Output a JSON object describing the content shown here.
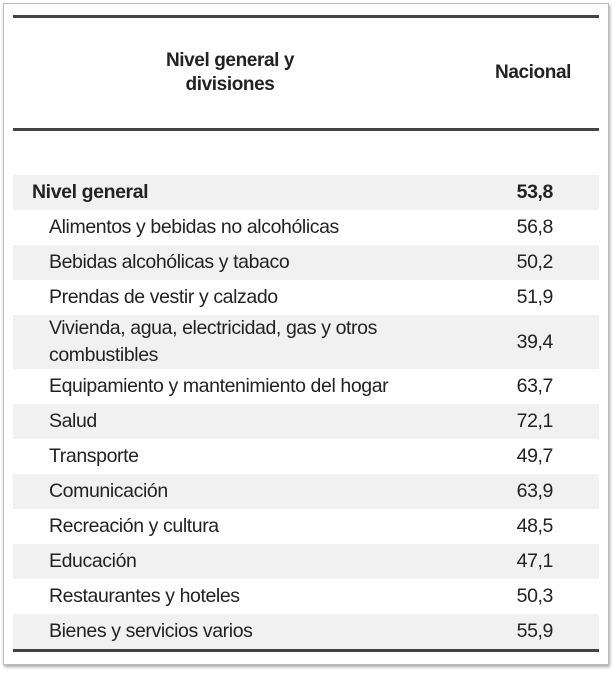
{
  "table": {
    "columns": [
      "Nivel general y divisiones",
      "Nacional"
    ],
    "rows": [
      [
        "Nivel general",
        "53,8"
      ],
      [
        "Alimentos y bebidas no alcohólicas",
        "56,8"
      ],
      [
        "Bebidas alcohólicas y tabaco",
        "50,2"
      ],
      [
        "Prendas de vestir y calzado",
        "51,9"
      ],
      [
        "Vivienda, agua, electricidad, gas y otros combustibles",
        "39,4"
      ],
      [
        "Equipamiento y mantenimiento del hogar",
        "63,7"
      ],
      [
        "Salud",
        "72,1"
      ],
      [
        "Transporte",
        "49,7"
      ],
      [
        "Comunicación",
        "63,9"
      ],
      [
        "Recreación y cultura",
        "48,5"
      ],
      [
        "Educación",
        "47,1"
      ],
      [
        "Restaurantes y hoteles",
        "50,3"
      ],
      [
        "Bienes y servicios varios",
        "55,9"
      ]
    ]
  }
}
